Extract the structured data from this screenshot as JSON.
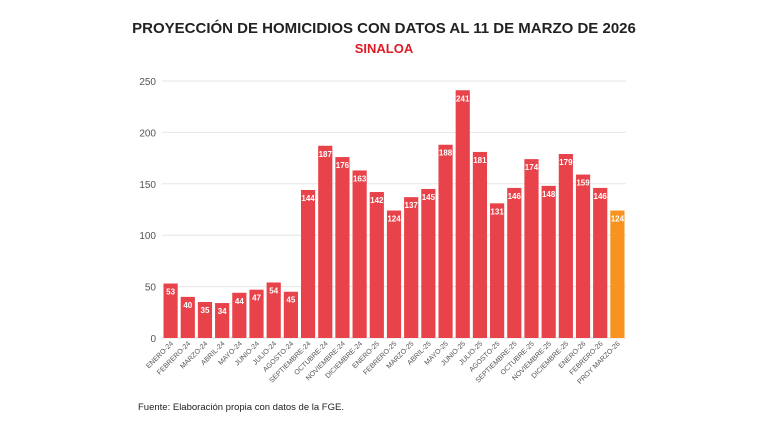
{
  "chart_data": {
    "type": "bar",
    "title": "PROYECCIÓN DE HOMICIDIOS CON DATOS AL 11 DE MARZO DE 2026",
    "subtitle": "SINALOA",
    "xlabel": "",
    "ylabel": "",
    "ylim": [
      0,
      250
    ],
    "yticks": [
      0,
      50,
      100,
      150,
      200,
      250
    ],
    "grid": true,
    "categories": [
      "ENERO-24",
      "FEBRERO-24",
      "MARZO-24",
      "ABRIL-24",
      "MAYO-24",
      "JUNIO-24",
      "JULIO-24",
      "AGOSTO-24",
      "SEPTIEMBRE-24",
      "OCTUBRE-24",
      "NOVIEMBRE-24",
      "DICIEMBRE-24",
      "ENERO-25",
      "FEBRERO-25",
      "MARZO-25",
      "ABRIL-25",
      "MAYO-25",
      "JUNIO-25",
      "JULIO-25",
      "AGOSTO-25",
      "SEPTIEMBRE-25",
      "OCTUBRE-25",
      "NOVIEMBRE-25",
      "DICIEMBRE-25",
      "ENERO-26",
      "FEBRERO-26",
      "PROY MARZO-26"
    ],
    "values": [
      53,
      40,
      35,
      34,
      44,
      47,
      54,
      45,
      144,
      187,
      176,
      163,
      142,
      124,
      137,
      145,
      188,
      241,
      181,
      131,
      146,
      174,
      148,
      179,
      159,
      146,
      124
    ],
    "colors": {
      "actual": "#e8434a",
      "projection": "#f7931e"
    }
  },
  "source": "Fuente: Elaboración propia con datos de la FGE."
}
